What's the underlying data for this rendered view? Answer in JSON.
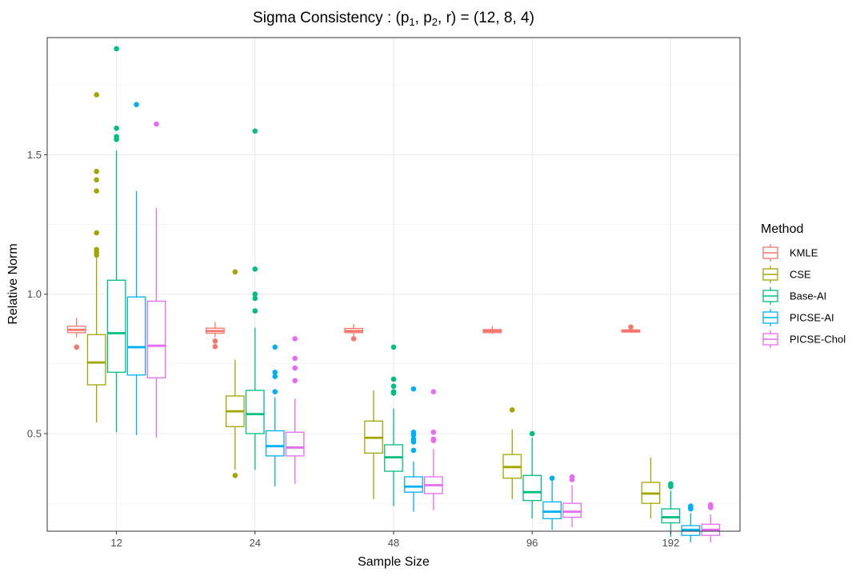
{
  "chart_data": {
    "type": "boxplot",
    "title_main": "Sigma Consistency : ",
    "title_params": {
      "p1": "p",
      "p1_sub": "1",
      "p2": "p",
      "p2_sub": "2",
      "r": "r",
      "values": "(12, 8, 4)"
    },
    "xlabel": "Sample Size",
    "ylabel": "Relative Norm",
    "categories": [
      "12",
      "24",
      "48",
      "96",
      "192"
    ],
    "y_ticks": [
      0.5,
      1.0,
      1.5
    ],
    "y_tick_labels": [
      "0.5",
      "1.0",
      "1.5"
    ],
    "ylim": [
      0.15,
      1.92
    ],
    "legend_title": "Method",
    "legend_position": "right",
    "series": [
      {
        "name": "KMLE",
        "color": "#F8766D",
        "boxes": [
          {
            "min": 0.845,
            "q1": 0.862,
            "median": 0.872,
            "q3": 0.885,
            "max": 0.915,
            "outliers": [
              0.81
            ]
          },
          {
            "min": 0.845,
            "q1": 0.86,
            "median": 0.868,
            "q3": 0.878,
            "max": 0.9,
            "outliers": [
              0.832,
              0.812
            ]
          },
          {
            "min": 0.85,
            "q1": 0.862,
            "median": 0.868,
            "q3": 0.877,
            "max": 0.892,
            "outliers": [
              0.84
            ]
          },
          {
            "min": 0.858,
            "q1": 0.862,
            "median": 0.868,
            "q3": 0.873,
            "max": 0.885,
            "outliers": []
          },
          {
            "min": 0.862,
            "q1": 0.864,
            "median": 0.868,
            "q3": 0.872,
            "max": 0.878,
            "outliers": [
              0.882
            ]
          }
        ]
      },
      {
        "name": "CSE",
        "color": "#A3A500",
        "boxes": [
          {
            "min": 0.54,
            "q1": 0.675,
            "median": 0.755,
            "q3": 0.855,
            "max": 1.13,
            "outliers": [
              1.14,
              1.15,
              1.16,
              1.22,
              1.37,
              1.41,
              1.44,
              1.715
            ]
          },
          {
            "min": 0.37,
            "q1": 0.525,
            "median": 0.58,
            "q3": 0.635,
            "max": 0.765,
            "outliers": [
              1.08,
              0.35
            ]
          },
          {
            "min": 0.265,
            "q1": 0.43,
            "median": 0.485,
            "q3": 0.545,
            "max": 0.655,
            "outliers": []
          },
          {
            "min": 0.265,
            "q1": 0.34,
            "median": 0.38,
            "q3": 0.425,
            "max": 0.515,
            "outliers": [
              0.585
            ]
          },
          {
            "min": 0.195,
            "q1": 0.25,
            "median": 0.285,
            "q3": 0.325,
            "max": 0.415,
            "outliers": []
          }
        ]
      },
      {
        "name": "Base-AI",
        "color": "#00BF7D",
        "boxes": [
          {
            "min": 0.505,
            "q1": 0.72,
            "median": 0.86,
            "q3": 1.05,
            "max": 1.515,
            "outliers": [
              1.555,
              1.565,
              1.595,
              1.88
            ]
          },
          {
            "min": 0.37,
            "q1": 0.5,
            "median": 0.57,
            "q3": 0.655,
            "max": 0.88,
            "outliers": [
              0.94,
              0.985,
              1.0,
              1.09,
              1.585
            ]
          },
          {
            "min": 0.24,
            "q1": 0.365,
            "median": 0.415,
            "q3": 0.46,
            "max": 0.59,
            "outliers": [
              0.645,
              0.65,
              0.67,
              0.695,
              0.81
            ]
          },
          {
            "min": 0.195,
            "q1": 0.26,
            "median": 0.29,
            "q3": 0.35,
            "max": 0.485,
            "outliers": [
              0.5
            ]
          },
          {
            "min": 0.13,
            "q1": 0.18,
            "median": 0.2,
            "q3": 0.23,
            "max": 0.295,
            "outliers": [
              0.31,
              0.315,
              0.32
            ]
          }
        ]
      },
      {
        "name": "PICSE-AI",
        "color": "#00B0F6",
        "boxes": [
          {
            "min": 0.495,
            "q1": 0.71,
            "median": 0.81,
            "q3": 0.99,
            "max": 1.37,
            "outliers": [
              1.68
            ]
          },
          {
            "min": 0.31,
            "q1": 0.42,
            "median": 0.455,
            "q3": 0.51,
            "max": 0.63,
            "outliers": [
              0.65,
              0.705,
              0.72,
              0.81
            ]
          },
          {
            "min": 0.22,
            "q1": 0.29,
            "median": 0.31,
            "q3": 0.345,
            "max": 0.4,
            "outliers": [
              0.44,
              0.47,
              0.48,
              0.495,
              0.505,
              0.66
            ]
          },
          {
            "min": 0.155,
            "q1": 0.195,
            "median": 0.22,
            "q3": 0.255,
            "max": 0.33,
            "outliers": [
              0.34
            ]
          },
          {
            "min": 0.11,
            "q1": 0.135,
            "median": 0.155,
            "q3": 0.17,
            "max": 0.215,
            "outliers": [
              0.23,
              0.235,
              0.24
            ]
          }
        ]
      },
      {
        "name": "PICSE-Chol",
        "color": "#E76BF3",
        "boxes": [
          {
            "min": 0.485,
            "q1": 0.7,
            "median": 0.815,
            "q3": 0.975,
            "max": 1.31,
            "outliers": [
              1.61
            ]
          },
          {
            "min": 0.32,
            "q1": 0.42,
            "median": 0.45,
            "q3": 0.505,
            "max": 0.625,
            "outliers": [
              0.69,
              0.735,
              0.77,
              0.84
            ]
          },
          {
            "min": 0.225,
            "q1": 0.285,
            "median": 0.315,
            "q3": 0.345,
            "max": 0.445,
            "outliers": [
              0.475,
              0.48,
              0.505,
              0.65
            ]
          },
          {
            "min": 0.165,
            "q1": 0.2,
            "median": 0.22,
            "q3": 0.25,
            "max": 0.315,
            "outliers": [
              0.335,
              0.345
            ]
          },
          {
            "min": 0.11,
            "q1": 0.135,
            "median": 0.155,
            "q3": 0.175,
            "max": 0.21,
            "outliers": [
              0.235,
              0.24,
              0.245
            ]
          }
        ]
      }
    ]
  }
}
